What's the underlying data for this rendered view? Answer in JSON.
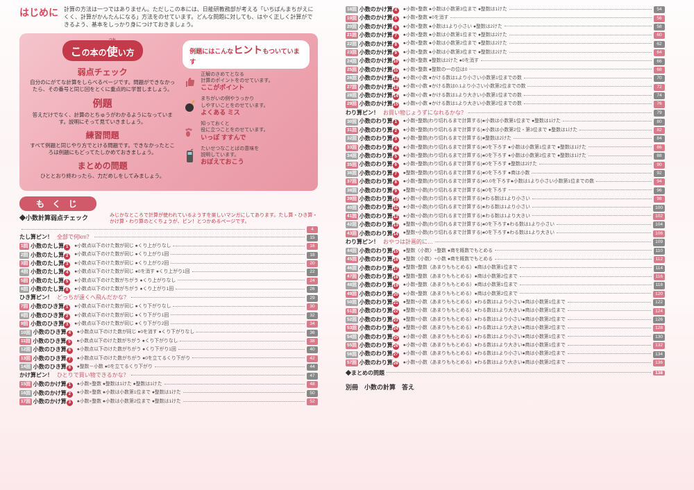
{
  "hajime": {
    "label": "はじめに",
    "text": "計算の方法は一つではありません。ただしこの本には、日能研教務部が考える「いちばんまちがえにくく、計算がかんたんになる」方法をのせています。どんな問題に対しても、はやく正しく計算ができるよう、基本をしっかり身につけておきましょう。"
  },
  "guide": {
    "title_pre": "こ",
    "title_mid": "の本の",
    "title_big": "使",
    "title_post": "い方",
    "usage_ruby": "つか",
    "weak": "弱点チェック",
    "weak_txt": "自分のにがてな計算をしらべるページです。問題ができなかったら、その番号と同じ回をとくに重点的に学習しましょう。",
    "reidai": "例題",
    "reidai_txt": "答えだけでなく、計算のとちゅうがわかるようになっています。説明にそって見ていきましょう。",
    "renshu": "練習問題",
    "renshu_txt": "すべて例題と同じやり方でとける問題です。できなかったところは例題にもどってたしかめておきましょう。",
    "matome": "まとめの問題",
    "matome_txt": "ひととおり終わったら、力だめしをしてみましょう。",
    "hint_pre": "例題にはこんな",
    "hint_big": "ヒント",
    "hint_post": "もついています",
    "point_txt1": "正解のきめてとなる",
    "point_txt2": "計算のポイントをのせています。",
    "point_label": "ここがポイント",
    "miss_txt1": "まちがいの例やうっかり",
    "miss_txt2": "しやすいことをのせています。",
    "miss_label": "よくある ミス",
    "susunde_txt1": "知っておくと",
    "susunde_txt2": "役に立つことをのせています。",
    "susunde_label": "いっぽ すすんで",
    "oboe_txt1": "たいせつなことばの意味を",
    "oboe_txt2": "説明しています。",
    "oboe_label": "おぼえておこう"
  },
  "mokuji_label": "も く じ",
  "note": "みじかなところで計算が使われているようすを楽しいマンガにしてあります。たし算・ひき算・かけ算・わり算のとくちょうが、ピン！とつかめるページです。",
  "sec1_title": "◆小数計算弱点チェック",
  "sec1_page": "4",
  "bin_rows": [
    {
      "label": "たし算ピン！",
      "txt": "全部で何km？",
      "page": "15"
    }
  ],
  "left_rows": [
    {
      "n": "1",
      "t": "小数のたし算",
      "c": "1",
      "d": "●小数点以下のけた数が同じ ●くり上がりなし",
      "p": "16",
      "pink": true
    },
    {
      "n": "2",
      "t": "小数のたし算",
      "c": "2",
      "d": "●小数点以下のけた数が同じ ●くり上がり1回",
      "p": "18"
    },
    {
      "n": "3",
      "t": "小数のたし算",
      "c": "3",
      "d": "●小数点以下のけた数が同じ ●くり上がり2回",
      "p": "20",
      "pink": true
    },
    {
      "n": "4",
      "t": "小数のたし算",
      "c": "4",
      "d": "●小数点以下のけた数が同じ ●0を消す ●くり上がり1回",
      "p": "22"
    },
    {
      "n": "5",
      "t": "小数のたし算",
      "c": "5",
      "d": "●小数点以下のけた数がちがう ●くり上がりなし",
      "p": "24",
      "pink": true
    },
    {
      "n": "6",
      "t": "小数のたし算",
      "c": "6",
      "d": "●小数点以下のけた数がちがう ●くり上がり1回",
      "p": "26"
    }
  ],
  "bin2": {
    "label": "ひき算ピン！",
    "txt": "どっちが遠くへ飛んだかな？",
    "page": "29"
  },
  "left_rows2": [
    {
      "n": "7",
      "t": "小数のひき算",
      "c": "1",
      "d": "●小数点以下のけた数が同じ ●くり下がりなし",
      "p": "30",
      "pink": true
    },
    {
      "n": "8",
      "t": "小数のひき算",
      "c": "2",
      "d": "●小数点以下のけた数が同じ ●くり下がり1回",
      "p": "32"
    },
    {
      "n": "9",
      "t": "小数のひき算",
      "c": "3",
      "d": "●小数点以下のけた数が同じ ●くり下がり2回",
      "p": "34",
      "pink": true
    },
    {
      "n": "10",
      "t": "小数のひき算",
      "c": "4",
      "d": "●小数点以下のけた数が同じ ●0を消す ●くり下がりなし",
      "p": "36"
    },
    {
      "n": "11",
      "t": "小数のひき算",
      "c": "5",
      "d": "●小数点以下のけた数がちがう ●くり下がりなし",
      "p": "38",
      "pink": true
    },
    {
      "n": "12",
      "t": "小数のひき算",
      "c": "6",
      "d": "●小数点以下のけた数がちがう ●くり下がり1回",
      "p": "40"
    },
    {
      "n": "13",
      "t": "小数のひき算",
      "c": "7",
      "d": "●小数点以下のけた数がちがう ●0を立てるくり下がり",
      "p": "42",
      "pink": true
    },
    {
      "n": "14",
      "t": "小数のひき算",
      "c": "8",
      "d": "●整数－小数 ●0を立てるくり下がり",
      "p": "44"
    }
  ],
  "bin3": {
    "label": "かけ算ピン！",
    "txt": "ひとりで買い物できるかな？",
    "page": "47"
  },
  "left_rows3": [
    {
      "n": "15",
      "t": "小数のかけ算",
      "c": "1",
      "d": "●小数×整数 ●整数は1けた ●整数は1けた",
      "p": "48",
      "pink": true
    },
    {
      "n": "16",
      "t": "小数のかけ算",
      "c": "2",
      "d": "●小数×整数 ●小数は小数第1位まで ●整数は1けた",
      "p": "50"
    },
    {
      "n": "17",
      "t": "小数のかけ算",
      "c": "3",
      "d": "●小数×整数 ●小数は小数第2位まで ●整数は1けた",
      "p": "52",
      "pink": true
    }
  ],
  "right_rows1": [
    {
      "n": "18",
      "t": "小数のかけ算",
      "c": "4",
      "d": "●小数×整数 ●小数は小数第3位まで ●整数は1けた",
      "p": "54"
    },
    {
      "n": "19",
      "t": "小数のかけ算",
      "c": "5",
      "d": "●小数×整数 ●0を消す",
      "p": "56",
      "pink": true
    },
    {
      "n": "20",
      "t": "小数のかけ算",
      "c": "6",
      "d": "●小数×整数 ●小数は1より小さい ●整数は2けた",
      "p": "58"
    },
    {
      "n": "21",
      "t": "小数のかけ算",
      "c": "7",
      "d": "●小数×整数 ●小数は小数第1位まで ●整数は2けた",
      "p": "60",
      "pink": true
    },
    {
      "n": "22",
      "t": "小数のかけ算",
      "c": "8",
      "d": "●小数×整数 ●小数は小数第2位まで ●整数は2けた",
      "p": "62"
    },
    {
      "n": "23",
      "t": "小数のかけ算",
      "c": "9",
      "d": "●小数×整数 ●小数は小数第3位まで ●整数は2けた",
      "p": "64",
      "pink": true
    },
    {
      "n": "24",
      "t": "小数のかけ算",
      "c": "10",
      "d": "●小数×整数 ●整数は2けた ●0を消す",
      "p": "66"
    },
    {
      "n": "25",
      "t": "小数のかけ算",
      "c": "11",
      "d": "●小数×整数 ●整数の一の位は0",
      "p": "68",
      "pink": true
    },
    {
      "n": "26",
      "t": "小数のかけ算",
      "c": "12",
      "d": "●小数×小数 ●かける数は1より小さい小数第1位までの数",
      "p": "70"
    },
    {
      "n": "27",
      "t": "小数のかけ算",
      "c": "13",
      "d": "●小数×小数 ●かける数は0.1より小さい小数第2位までの数",
      "p": "72",
      "pink": true
    },
    {
      "n": "28",
      "t": "小数のかけ算",
      "c": "14",
      "d": "●小数×小数 ●かける数は1より大きい小数第1位までの数",
      "p": "74"
    },
    {
      "n": "29",
      "t": "小数のかけ算",
      "c": "15",
      "d": "●小数×小数 ●かける数は1より大きい小数第2位までの数",
      "p": "76",
      "pink": true
    }
  ],
  "bin4": {
    "label": "わり算ピン！",
    "txt": "お買い物じょうずになれるかな？",
    "page": "79"
  },
  "right_rows2": [
    {
      "n": "30",
      "t": "小数のわり算",
      "c": "1",
      "d": "●小数÷整数(わり切れるまで計算する)●小数は小数第1位まで ●整数は1けた",
      "p": "80"
    },
    {
      "n": "31",
      "t": "小数のわり算",
      "c": "2",
      "d": "●小数÷整数(わり切れるまで計算する)●小数は小数第2位・第3位まで ●整数は1けた",
      "p": "82",
      "pink": true
    },
    {
      "n": "32",
      "t": "小数のわり算",
      "c": "3",
      "d": "●小数÷整数(わり切れるまで計算する)●整数は2けた",
      "p": "84"
    },
    {
      "n": "33",
      "t": "小数のわり算",
      "c": "4",
      "d": "●小数÷整数(わり切れるまで計算する)●0を下ろす ●小数は小数第1位まで ●整数は1けた",
      "p": "86",
      "pink": true
    },
    {
      "n": "34",
      "t": "小数のわり算",
      "c": "5",
      "d": "●小数÷整数(わり切れるまで計算する)●0を下ろす ●小数は小数第2位まで ●整数は1けた",
      "p": "88"
    },
    {
      "n": "35",
      "t": "小数のわり算",
      "c": "6",
      "d": "●小数÷整数(わり切れるまで計算する)●0を下ろす ●整数は2けた",
      "p": "90",
      "pink": true
    },
    {
      "n": "36",
      "t": "小数のわり算",
      "c": "7",
      "d": "●整数÷整数(わり切れるまで計算する)●0を下ろす ●商は小数",
      "p": "92"
    },
    {
      "n": "37",
      "t": "小数のわり算",
      "c": "8",
      "d": "●小数÷整数(わり切れるまで計算する)●0.0を下ろす●小数は1より小さい小数第1位までの数",
      "p": "94",
      "pink": true
    },
    {
      "n": "38",
      "t": "小数のわり算",
      "c": "9",
      "d": "●整数÷小数(わり切れるまで計算する)●0を下ろす",
      "p": "96"
    },
    {
      "n": "39",
      "t": "小数のわり算",
      "c": "10",
      "d": "●小数÷小数(わり切れるまで計算する)●わる数は1より小さい",
      "p": "98",
      "pink": true
    },
    {
      "n": "40",
      "t": "小数のわり算",
      "c": "11",
      "d": "●小数÷小数(わり切れるまで計算する)●わる数は1より小さい",
      "p": "100"
    },
    {
      "n": "41",
      "t": "小数のわり算",
      "c": "12",
      "d": "●小数÷小数(わり切れるまで計算する)●わる数は1より大きい",
      "p": "102",
      "pink": true
    },
    {
      "n": "42",
      "t": "小数のわり算",
      "c": "13",
      "d": "●整数÷小数(わり切れるまで計算する)●0を下ろす●わる数は1より小さい",
      "p": "104"
    },
    {
      "n": "43",
      "t": "小数のわり算",
      "c": "14",
      "d": "●整数÷小数(わり切れるまで計算する)●0を下ろす●わる数は1より大きい",
      "p": "106",
      "pink": true
    }
  ],
  "bin5": {
    "label": "わり算ピン！",
    "txt": "おやつは計画的に…",
    "page": "109"
  },
  "right_rows3": [
    {
      "n": "44",
      "t": "小数のわり算",
      "c": "15",
      "d": "●整数〈小数〉÷整数 ●商を概数でもとめる",
      "p": "110"
    },
    {
      "n": "45",
      "t": "小数のわり算",
      "c": "16",
      "d": "●整数〈小数〉÷小数 ●商を概数でもとめる",
      "p": "112",
      "pink": true
    },
    {
      "n": "46",
      "t": "小数のわり算",
      "c": "17",
      "d": "●整数÷整数（あまりももとめる）●商は小数第1位まで",
      "p": "114"
    },
    {
      "n": "47",
      "t": "小数のわり算",
      "c": "18",
      "d": "●整数÷整数（あまりももとめる）●商は小数第2位まで",
      "p": "116",
      "pink": true
    },
    {
      "n": "48",
      "t": "小数のわり算",
      "c": "19",
      "d": "●小数÷整数（あまりももとめる）●商は小数第1位まで",
      "p": "118"
    },
    {
      "n": "49",
      "t": "小数のわり算",
      "c": "20",
      "d": "●小数÷整数（あまりももとめる）●商は小数第2位まで",
      "p": "120",
      "pink": true
    },
    {
      "n": "50",
      "t": "小数のわり算",
      "c": "21",
      "d": "●整数÷小数（あまりももとめる）●わる数は1より小さい●商は小数第1位まで",
      "p": "122"
    },
    {
      "n": "51",
      "t": "小数のわり算",
      "c": "22",
      "d": "●整数÷小数（あまりももとめる）●わる数は1より大きい●商は小数第1位まで",
      "p": "124",
      "pink": true
    },
    {
      "n": "52",
      "t": "小数のわり算",
      "c": "23",
      "d": "●整数÷小数（あまりももとめる）●わる数は1より小さい●商は小数第2位まで",
      "p": "126"
    },
    {
      "n": "53",
      "t": "小数のわり算",
      "c": "24",
      "d": "●整数÷小数（あまりももとめる）●わる数は1より大きい●商は小数第2位まで",
      "p": "128",
      "pink": true
    },
    {
      "n": "54",
      "t": "小数のわり算",
      "c": "25",
      "d": "●小数÷小数（あまりももとめる）●わる数は1より小さい●商は小数第1位まで",
      "p": "130"
    },
    {
      "n": "55",
      "t": "小数のわり算",
      "c": "26",
      "d": "●小数÷小数（あまりももとめる）●わる数は1より大きい●商は小数第1位まで",
      "p": "132",
      "pink": true
    },
    {
      "n": "56",
      "t": "小数のわり算",
      "c": "27",
      "d": "●小数÷小数（あまりももとめる）●わる数は1より小さい●商は小数第2位まで",
      "p": "134"
    },
    {
      "n": "57",
      "t": "小数のわり算",
      "c": "28",
      "d": "●小数÷小数（あまりももとめる）●わる数は1より大きい●商は小数第2位まで",
      "p": "136",
      "pink": true
    }
  ],
  "matome_label": "◆まとめの問題",
  "matome_page": "138",
  "bessatsu": "別冊　小数の計算　答え"
}
